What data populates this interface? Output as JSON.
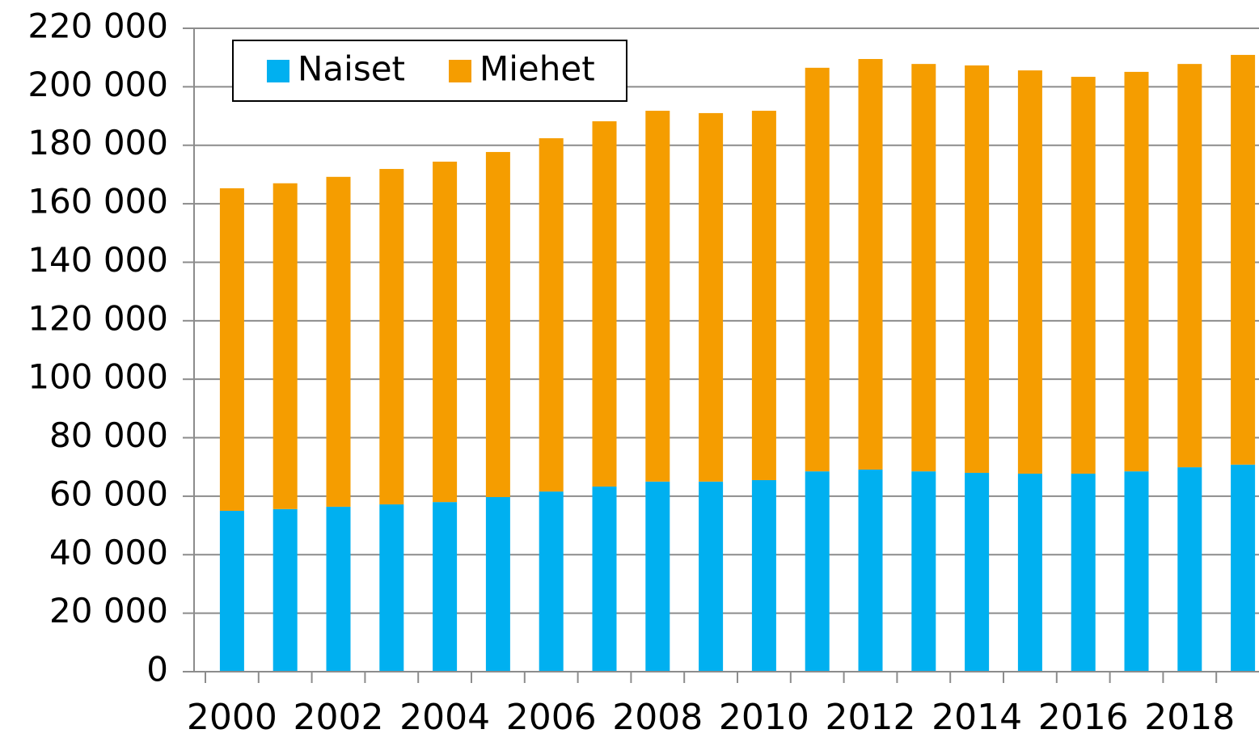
{
  "chart_data": {
    "type": "stacked_bar",
    "categories": [
      "2000",
      null,
      "2002",
      null,
      "2004",
      null,
      "2006",
      null,
      "2008",
      null,
      "2010",
      null,
      "2012",
      null,
      "2014",
      null,
      "2016",
      null,
      "2018",
      null
    ],
    "series": [
      {
        "name": "Naiset",
        "color": "#00b0f0",
        "values": [
          55.0,
          55.6,
          56.4,
          57.2,
          58.0,
          59.7,
          61.6,
          63.3,
          65.0,
          65.0,
          65.5,
          68.5,
          69.1,
          68.5,
          68.0,
          67.7,
          67.7,
          68.5,
          69.9,
          70.8
        ]
      },
      {
        "name": "Miehet",
        "color": "#f59d00",
        "values": [
          110.3,
          111.4,
          112.8,
          114.7,
          116.4,
          118.0,
          120.8,
          124.9,
          126.8,
          126.0,
          126.3,
          138.0,
          140.4,
          139.3,
          139.3,
          137.9,
          135.7,
          136.6,
          137.9,
          140.1
        ]
      }
    ],
    "ylim": [
      0,
      220
    ],
    "yticks": [
      0,
      {
        "value": 20,
        "label": "20 000"
      },
      {
        "value": 40,
        "label": "40 000"
      },
      {
        "value": 60,
        "label": "60 000"
      },
      {
        "value": 80,
        "label": "80 000"
      },
      {
        "value": 100,
        "label": "100 000"
      },
      {
        "value": 120,
        "label": "120 000"
      },
      {
        "value": 140,
        "label": "140 000"
      },
      {
        "value": 160,
        "label": "160 000"
      },
      {
        "value": 180,
        "label": "180 000"
      },
      {
        "value": 200,
        "label": "200 000"
      },
      {
        "value": 220,
        "label": "220 000"
      }
    ],
    "grid": true,
    "legend": "top-left"
  }
}
